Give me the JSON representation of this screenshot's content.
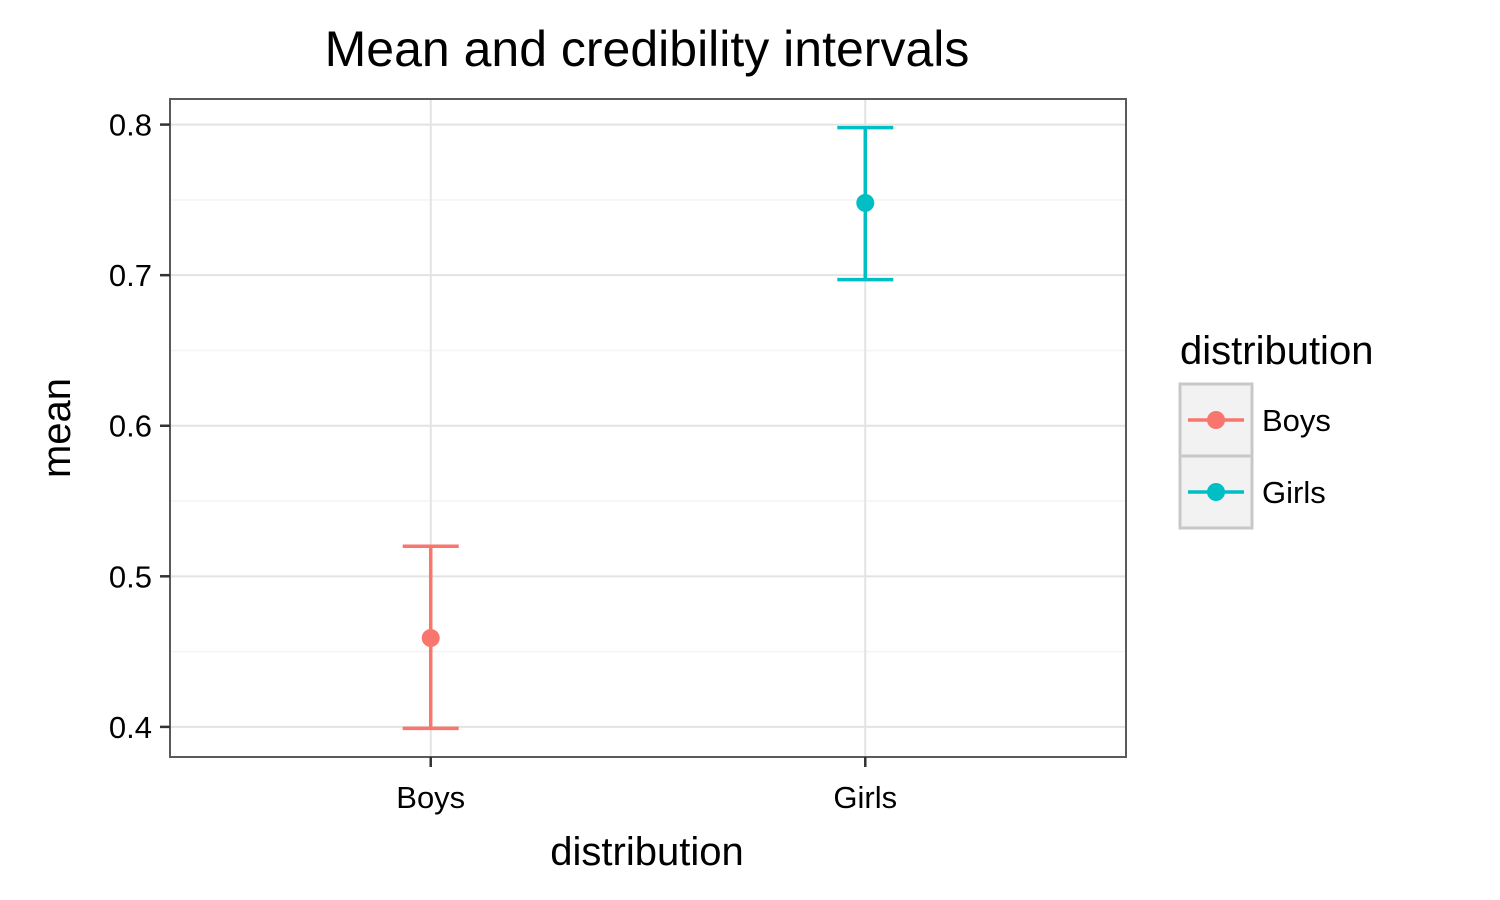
{
  "chart_data": {
    "type": "scatter",
    "title": "Mean and credibility intervals",
    "xlabel": "distribution",
    "ylabel": "mean",
    "categories": [
      "Boys",
      "Girls"
    ],
    "series": [
      {
        "name": "Boys",
        "category": "Boys",
        "mean": 0.459,
        "lower": 0.399,
        "upper": 0.52,
        "color": "#F8766D"
      },
      {
        "name": "Girls",
        "category": "Girls",
        "mean": 0.748,
        "lower": 0.697,
        "upper": 0.798,
        "color": "#00BFC4"
      }
    ],
    "ylim": [
      0.38,
      0.817
    ],
    "yticks": [
      0.4,
      0.5,
      0.6,
      0.7,
      0.8
    ],
    "ytick_labels": [
      "0.4",
      "0.5",
      "0.6",
      "0.7",
      "0.8"
    ],
    "grid": true,
    "legend": {
      "title": "distribution",
      "position": "right",
      "entries": [
        "Boys",
        "Girls"
      ]
    }
  }
}
